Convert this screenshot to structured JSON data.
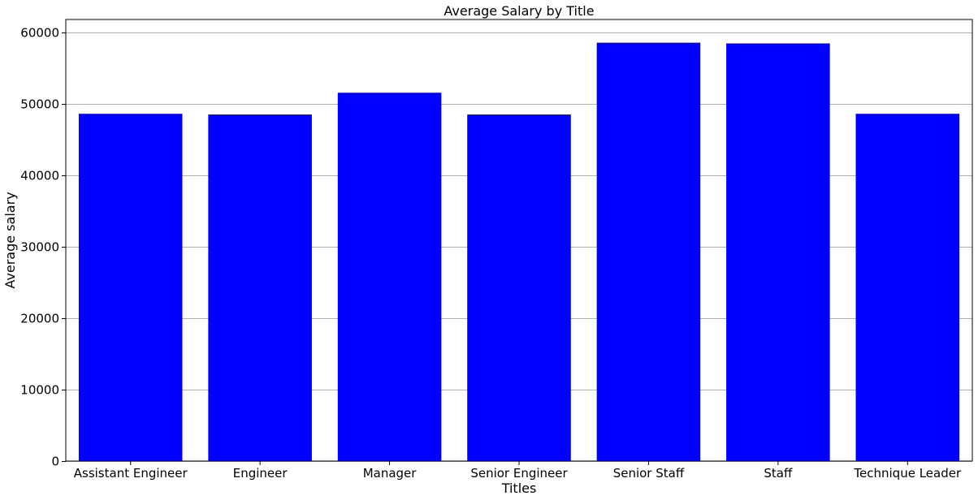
{
  "chart_data": {
    "type": "bar",
    "title": "Average Salary by Title",
    "xlabel": "Titles",
    "ylabel": "Average salary",
    "categories": [
      "Assistant Engineer",
      "Engineer",
      "Manager",
      "Senior Engineer",
      "Senior Staff",
      "Staff",
      "Technique Leader"
    ],
    "values": [
      48600,
      48500,
      51550,
      48500,
      58550,
      58450,
      48600
    ],
    "ylim": [
      0,
      61800
    ],
    "yticks": [
      0,
      10000,
      20000,
      30000,
      40000,
      50000,
      60000
    ],
    "grid": "y-axis",
    "legend": "none",
    "bar_color": "#0000ff",
    "grid_color": "#b0b0b0"
  }
}
